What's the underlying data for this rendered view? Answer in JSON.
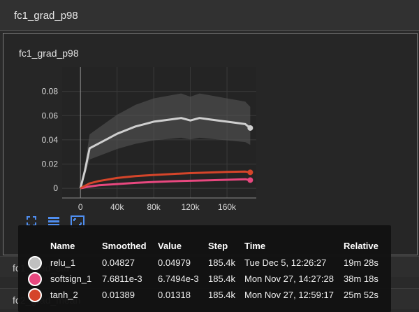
{
  "section": {
    "title": "fc1_grad_p98"
  },
  "card": {
    "title": "fc1_grad_p98"
  },
  "chart_data": {
    "type": "line",
    "title": "fc1_grad_p98",
    "xlabel": "",
    "ylabel": "",
    "x_ticks": [
      "0",
      "40k",
      "80k",
      "120k",
      "160k"
    ],
    "x_tick_values": [
      0,
      40000,
      80000,
      120000,
      160000
    ],
    "y_ticks": [
      "0",
      "0.02",
      "0.04",
      "0.06",
      "0.08"
    ],
    "y_tick_values": [
      0,
      0.02,
      0.04,
      0.06,
      0.08
    ],
    "xlim": [
      -20000,
      192000
    ],
    "ylim": [
      -0.008,
      0.1
    ],
    "grid": true,
    "series": [
      {
        "name": "relu_1",
        "color": "#cfcfcf",
        "x": [
          0,
          5000,
          10000,
          20000,
          30000,
          40000,
          50000,
          60000,
          70000,
          80000,
          90000,
          100000,
          110000,
          120000,
          130000,
          140000,
          150000,
          160000,
          170000,
          180000,
          185400
        ],
        "y": [
          0,
          0.015,
          0.033,
          0.037,
          0.041,
          0.045,
          0.048,
          0.051,
          0.053,
          0.055,
          0.056,
          0.057,
          0.058,
          0.056,
          0.058,
          0.057,
          0.056,
          0.055,
          0.054,
          0.053,
          0.04979
        ]
      },
      {
        "name": "softsign_1",
        "color": "#e8487f",
        "x": [
          0,
          10000,
          20000,
          40000,
          60000,
          80000,
          100000,
          120000,
          140000,
          160000,
          180000,
          185400
        ],
        "y": [
          0,
          0.0015,
          0.0025,
          0.0035,
          0.0045,
          0.0052,
          0.0058,
          0.0062,
          0.0066,
          0.007,
          0.0075,
          0.0067494
        ]
      },
      {
        "name": "tanh_2",
        "color": "#d5452a",
        "x": [
          0,
          10000,
          20000,
          40000,
          60000,
          80000,
          100000,
          120000,
          140000,
          160000,
          180000,
          185400
        ],
        "y": [
          0,
          0.004,
          0.006,
          0.0085,
          0.01,
          0.011,
          0.0118,
          0.0125,
          0.013,
          0.0135,
          0.0138,
          0.01318
        ]
      }
    ]
  },
  "toolbar": {
    "icons": [
      "fit-domain-icon",
      "toggle-log-icon",
      "expand-icon"
    ]
  },
  "hidden_rows": [
    "fc1_grad_std",
    "fc2_grad_mean"
  ],
  "tooltip": {
    "headers": {
      "name": "Name",
      "smoothed": "Smoothed",
      "value": "Value",
      "step": "Step",
      "time": "Time",
      "relative": "Relative"
    },
    "rows": [
      {
        "color": "#c0c0c0",
        "name": "relu_1",
        "smoothed": "0.04827",
        "value": "0.04979",
        "step": "185.4k",
        "time": "Tue Dec 5, 12:26:27",
        "relative": "19m 28s"
      },
      {
        "color": "#e8487f",
        "name": "softsign_1",
        "smoothed": "7.6811e-3",
        "value": "6.7494e-3",
        "step": "185.4k",
        "time": "Mon Nov 27, 14:27:28",
        "relative": "38m 18s"
      },
      {
        "color": "#d5452a",
        "name": "tanh_2",
        "smoothed": "0.01389",
        "value": "0.01318",
        "step": "185.4k",
        "time": "Mon Nov 27, 12:59:17",
        "relative": "25m 52s"
      }
    ]
  }
}
